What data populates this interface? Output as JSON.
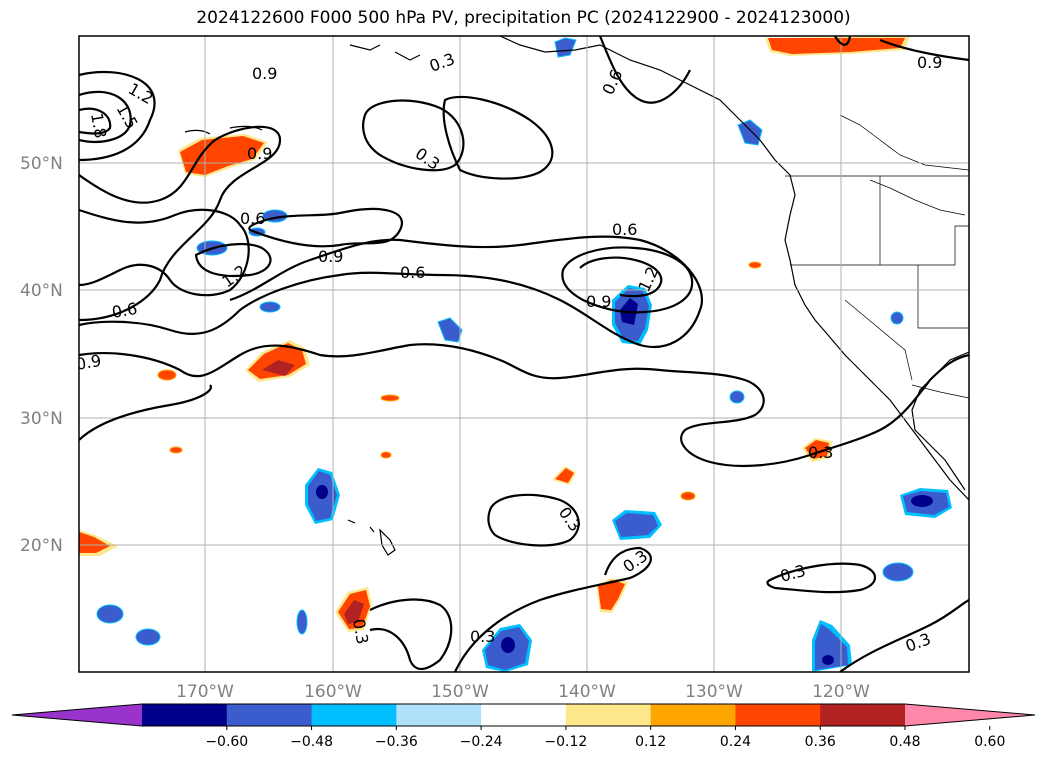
{
  "title": "2024122600 F000 500 hPa PV, precipitation PC (2024122900 - 2024123000)",
  "map": {
    "lat_labels": [
      "50°N",
      "40°N",
      "30°N",
      "20°N"
    ],
    "lon_labels": [
      "170°W",
      "160°W",
      "150°W",
      "140°W",
      "130°W",
      "120°W"
    ],
    "contour_labels": [
      "1.2",
      "1.5",
      "1.8",
      "0.9",
      "0.3",
      "0.6",
      "0.9",
      "0.6",
      "1.2",
      "0.9",
      "0.6",
      "0.6",
      "0.9",
      "1.2",
      "0.9",
      "0.6",
      "0.3",
      "0.3",
      "0.3",
      "0.3",
      "0.3",
      "0.3",
      "0.9"
    ]
  },
  "colorbar": {
    "ticks": [
      "−0.60",
      "−0.48",
      "−0.36",
      "−0.24",
      "−0.12",
      "0.12",
      "0.24",
      "0.36",
      "0.48",
      "0.60"
    ],
    "colors": [
      "#9933cc",
      "#00008b",
      "#3a5ccc",
      "#00bfff",
      "#afe1fa",
      "#ffffff",
      "#ffe78c",
      "#ffa500",
      "#ff4500",
      "#b22222",
      "#ff88aa"
    ]
  }
}
